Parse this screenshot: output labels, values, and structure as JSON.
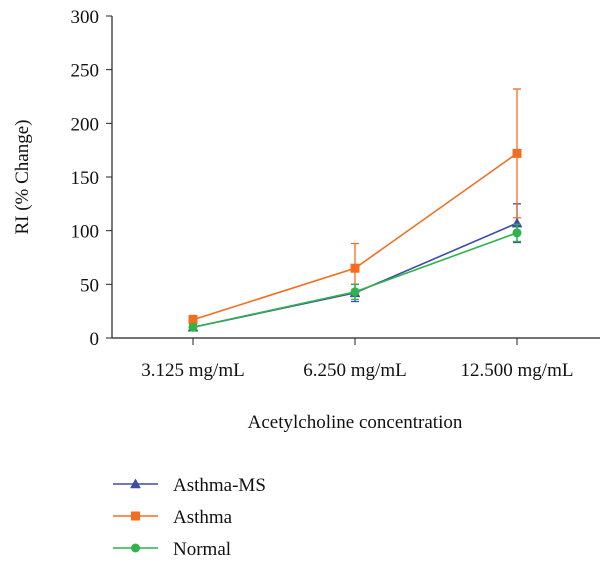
{
  "chart_data": {
    "type": "line",
    "title": "",
    "xlabel": "Acetylcholine concentration",
    "ylabel": "RI (% Change)",
    "categories": [
      "3.125 mg/mL",
      "6.250 mg/mL",
      "12.500 mg/mL"
    ],
    "ylim": [
      0,
      300
    ],
    "yticks": [
      0,
      50,
      100,
      150,
      200,
      250,
      300
    ],
    "grid": false,
    "legend_position": "bottom-left",
    "series": [
      {
        "name": "Asthma-MS",
        "color": "#3b4ea3",
        "marker": "triangle",
        "values": [
          10,
          42,
          107
        ],
        "error": [
          3,
          8,
          18
        ]
      },
      {
        "name": "Asthma",
        "color": "#f36d21",
        "marker": "square",
        "values": [
          17,
          65,
          172
        ],
        "error": [
          4,
          23,
          60
        ]
      },
      {
        "name": "Normal",
        "color": "#2fb34a",
        "marker": "circle",
        "values": [
          10,
          43,
          98
        ],
        "error": [
          2,
          7,
          8
        ]
      }
    ]
  }
}
